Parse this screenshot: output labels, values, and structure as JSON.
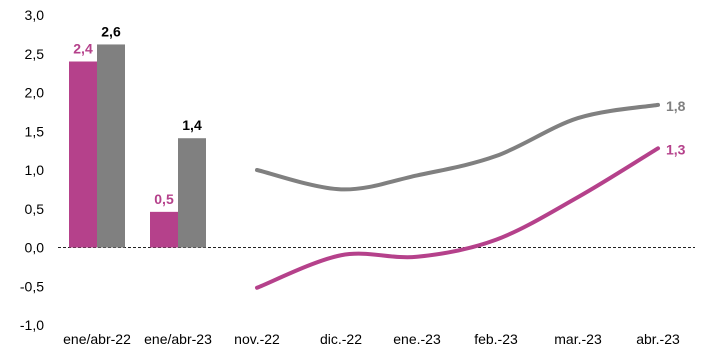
{
  "chart_data": {
    "type": "bar",
    "title": "",
    "xlabel": "",
    "ylabel": "",
    "ylim": [
      -1.0,
      3.0
    ],
    "y_ticks": [
      "3,0",
      "2,5",
      "2,0",
      "1,5",
      "1,0",
      "0,5",
      "0,0",
      "-0,5",
      "-1,0"
    ],
    "y_tick_values": [
      3.0,
      2.5,
      2.0,
      1.5,
      1.0,
      0.5,
      0.0,
      -0.5,
      -1.0
    ],
    "grid": false,
    "zero_line": "dashed",
    "colors": {
      "magenta": "#b5418b",
      "gray": "#808080"
    },
    "bars": {
      "categories": [
        "ene/abr-22",
        "ene/abr-23"
      ],
      "series": [
        {
          "color": "magenta",
          "values": [
            2.4,
            0.46
          ],
          "labels": [
            "2,4",
            "0,5"
          ]
        },
        {
          "color": "gray",
          "values": [
            2.62,
            1.41
          ],
          "labels": [
            "2,6",
            "1,4"
          ]
        }
      ]
    },
    "lines": {
      "categories": [
        "nov.-22",
        "dic.-22",
        "ene.-23",
        "feb.-23",
        "mar.-23",
        "abr.-23"
      ],
      "series": [
        {
          "color": "gray",
          "values": [
            1.0,
            0.75,
            0.93,
            1.18,
            1.67,
            1.84
          ],
          "end_label": "1,8"
        },
        {
          "color": "magenta",
          "values": [
            -0.52,
            -0.1,
            -0.12,
            0.1,
            0.65,
            1.28
          ],
          "end_label": "1,3"
        }
      ]
    }
  }
}
